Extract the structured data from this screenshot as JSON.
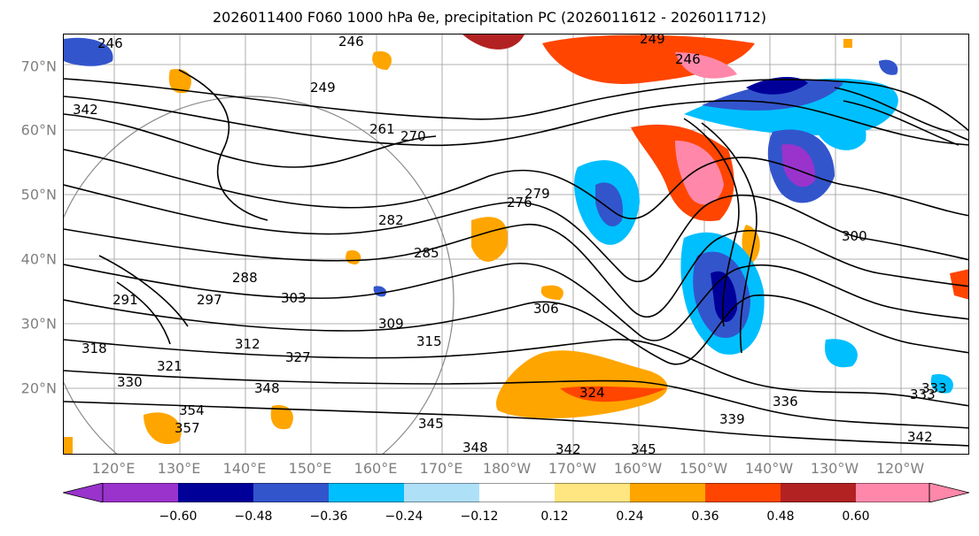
{
  "title": "2026011400 F060 1000 hPa θe, precipitation PC (2026011612 - 2026011712)",
  "lat_labels": [
    "70°N",
    "60°N",
    "50°N",
    "40°N",
    "30°N",
    "20°N"
  ],
  "lon_labels": [
    "120°E",
    "130°E",
    "140°E",
    "150°E",
    "160°E",
    "170°E",
    "180°W",
    "170°W",
    "160°W",
    "150°W",
    "140°W",
    "130°W",
    "120°W"
  ],
  "contour_labels": [
    "246",
    "249",
    "246",
    "249",
    "246",
    "261",
    "270",
    "276",
    "279",
    "282",
    "285",
    "288",
    "291",
    "297",
    "300",
    "303",
    "306",
    "309",
    "312",
    "315",
    "318",
    "321",
    "324",
    "327",
    "330",
    "333",
    "336",
    "339",
    "342",
    "345",
    "348",
    "354",
    "357",
    "342",
    "345",
    "348",
    "333",
    "342"
  ],
  "colorbar": {
    "ticks": [
      "−0.60",
      "−0.48",
      "−0.36",
      "−0.24",
      "−0.12",
      "0.12",
      "0.24",
      "0.36",
      "0.48",
      "0.60"
    ],
    "colors": [
      "#9933cc",
      "#000099",
      "#3355cc",
      "#00bfff",
      "#aee0f8",
      "#ffffff",
      "#ffe680",
      "#ffa500",
      "#ff4500",
      "#b22222",
      "#ff88aa",
      "#ff88aa"
    ]
  }
}
